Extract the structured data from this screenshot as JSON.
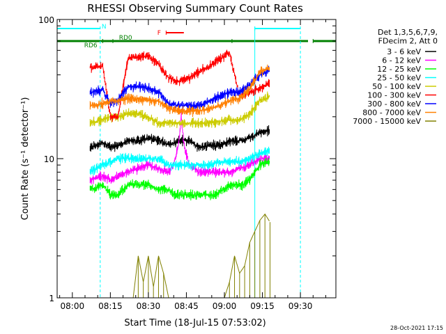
{
  "chart_data": {
    "type": "line",
    "title": "RHESSI Observing Summary Count Rates",
    "xlabel": "Start Time (18-Jul-15 07:53:02)",
    "ylabel": "Count Rate (s⁻¹ detector⁻¹)",
    "yscale": "log",
    "ylim": [
      1,
      100
    ],
    "xlim_minutes": [
      -6,
      104
    ],
    "x_ticks": [
      {
        "label": "08:00",
        "minute": 0
      },
      {
        "label": "08:15",
        "minute": 15
      },
      {
        "label": "08:30",
        "minute": 30
      },
      {
        "label": "08:45",
        "minute": 45
      },
      {
        "label": "09:00",
        "minute": 60
      },
      {
        "label": "09:15",
        "minute": 75
      },
      {
        "label": "09:30",
        "minute": 90
      }
    ],
    "y_ticks": [
      {
        "label": "1",
        "value": 1
      },
      {
        "label": "10",
        "value": 10
      },
      {
        "label": "100",
        "value": 100
      }
    ],
    "legend_header": [
      "Det 1,3,5,6,7,9,",
      "FDecim 2, Att 0"
    ],
    "legend_position": "right",
    "footer_date": "28-Oct-2021 17:15",
    "series": [
      {
        "name": "3 - 6 keV",
        "color": "#000000",
        "points": [
          [
            7,
            12
          ],
          [
            12,
            13
          ],
          [
            15,
            12
          ],
          [
            18,
            12.5
          ],
          [
            22,
            13.5
          ],
          [
            26,
            13.5
          ],
          [
            30,
            14
          ],
          [
            35,
            13.5
          ],
          [
            38,
            12.5
          ],
          [
            42,
            13.5
          ],
          [
            46,
            13.5
          ],
          [
            50,
            12
          ],
          [
            54,
            12.5
          ],
          [
            58,
            12.5
          ],
          [
            60,
            13
          ],
          [
            63,
            13.5
          ],
          [
            67,
            13.5
          ],
          [
            70,
            14
          ],
          [
            74,
            15.5
          ],
          [
            78,
            16
          ]
        ]
      },
      {
        "name": "6 - 12 keV",
        "color": "#ff00ff",
        "points": [
          [
            7,
            7
          ],
          [
            12,
            7.5
          ],
          [
            15,
            7
          ],
          [
            18,
            7.5
          ],
          [
            22,
            8
          ],
          [
            26,
            8.5
          ],
          [
            30,
            9
          ],
          [
            34,
            8.5
          ],
          [
            38,
            8
          ],
          [
            40,
            9
          ],
          [
            42,
            13
          ],
          [
            43,
            20
          ],
          [
            44,
            13
          ],
          [
            46,
            9
          ],
          [
            50,
            8
          ],
          [
            54,
            8
          ],
          [
            58,
            8
          ],
          [
            62,
            8
          ],
          [
            66,
            8.5
          ],
          [
            70,
            9
          ],
          [
            74,
            10
          ],
          [
            78,
            10
          ]
        ]
      },
      {
        "name": "12 - 25 keV",
        "color": "#00ff00",
        "points": [
          [
            7,
            6
          ],
          [
            12,
            6.5
          ],
          [
            15,
            5.5
          ],
          [
            18,
            5.5
          ],
          [
            22,
            6.5
          ],
          [
            26,
            6.5
          ],
          [
            30,
            6.5
          ],
          [
            34,
            6
          ],
          [
            38,
            6
          ],
          [
            40,
            5.5
          ],
          [
            44,
            5.5
          ],
          [
            48,
            5.5
          ],
          [
            52,
            5.5
          ],
          [
            56,
            5.5
          ],
          [
            60,
            6
          ],
          [
            63,
            6.5
          ],
          [
            67,
            6.5
          ],
          [
            70,
            7
          ],
          [
            74,
            9
          ],
          [
            78,
            9.5
          ]
        ]
      },
      {
        "name": "25 - 50 keV",
        "color": "#00ffff",
        "points": [
          [
            7,
            8
          ],
          [
            12,
            9
          ],
          [
            15,
            9.5
          ],
          [
            18,
            10
          ],
          [
            22,
            10
          ],
          [
            26,
            10
          ],
          [
            30,
            10
          ],
          [
            34,
            10
          ],
          [
            38,
            9
          ],
          [
            42,
            9
          ],
          [
            46,
            9
          ],
          [
            50,
            9
          ],
          [
            54,
            9
          ],
          [
            58,
            9.5
          ],
          [
            62,
            9.5
          ],
          [
            66,
            9.5
          ],
          [
            70,
            10
          ],
          [
            74,
            11
          ],
          [
            78,
            11.5
          ]
        ]
      },
      {
        "name": "50 - 100 keV",
        "color": "#cccc00",
        "points": [
          [
            7,
            18
          ],
          [
            12,
            19
          ],
          [
            15,
            20
          ],
          [
            18,
            20
          ],
          [
            22,
            21
          ],
          [
            26,
            21
          ],
          [
            30,
            20
          ],
          [
            34,
            18
          ],
          [
            38,
            18
          ],
          [
            42,
            18
          ],
          [
            46,
            18
          ],
          [
            50,
            18
          ],
          [
            54,
            18
          ],
          [
            58,
            18.5
          ],
          [
            62,
            19
          ],
          [
            66,
            19
          ],
          [
            70,
            21
          ],
          [
            74,
            26
          ],
          [
            78,
            28
          ]
        ]
      },
      {
        "name": "100 - 300 keV",
        "color": "#ff0000",
        "points": [
          [
            7,
            45
          ],
          [
            12,
            46
          ],
          [
            15,
            20
          ],
          [
            18,
            20
          ],
          [
            22,
            53
          ],
          [
            26,
            54
          ],
          [
            30,
            55
          ],
          [
            34,
            48
          ],
          [
            38,
            38
          ],
          [
            42,
            36
          ],
          [
            46,
            38
          ],
          [
            50,
            42
          ],
          [
            54,
            46
          ],
          [
            58,
            52
          ],
          [
            62,
            58
          ],
          [
            66,
            28
          ],
          [
            70,
            30
          ],
          [
            74,
            32
          ],
          [
            78,
            35
          ]
        ]
      },
      {
        "name": "300 - 800 keV",
        "color": "#0000ff",
        "points": [
          [
            7,
            30
          ],
          [
            12,
            31
          ],
          [
            15,
            25
          ],
          [
            18,
            26
          ],
          [
            22,
            33
          ],
          [
            26,
            33
          ],
          [
            30,
            32
          ],
          [
            34,
            30
          ],
          [
            38,
            25
          ],
          [
            42,
            24
          ],
          [
            46,
            24
          ],
          [
            50,
            24
          ],
          [
            54,
            26
          ],
          [
            58,
            28
          ],
          [
            62,
            30
          ],
          [
            66,
            30
          ],
          [
            70,
            34
          ],
          [
            74,
            40
          ],
          [
            78,
            43
          ]
        ]
      },
      {
        "name": "800 - 7000 keV",
        "color": "#ff8000",
        "points": [
          [
            7,
            24
          ],
          [
            12,
            25
          ],
          [
            15,
            26
          ],
          [
            18,
            26
          ],
          [
            22,
            27
          ],
          [
            26,
            27
          ],
          [
            30,
            26
          ],
          [
            34,
            26
          ],
          [
            38,
            23
          ],
          [
            42,
            22
          ],
          [
            46,
            22
          ],
          [
            50,
            22
          ],
          [
            54,
            23
          ],
          [
            58,
            24
          ],
          [
            62,
            26
          ],
          [
            66,
            27
          ],
          [
            70,
            32
          ],
          [
            74,
            42
          ],
          [
            78,
            45
          ]
        ]
      },
      {
        "name": "7000 - 15000 keV",
        "color": "#808000",
        "points": [
          [
            24,
            1
          ],
          [
            26,
            2
          ],
          [
            28,
            1.3
          ],
          [
            30,
            2
          ],
          [
            32,
            1.2
          ],
          [
            34,
            2
          ],
          [
            36,
            1.5
          ],
          [
            38,
            1
          ],
          [
            60,
            1
          ],
          [
            62,
            1.3
          ],
          [
            64,
            2
          ],
          [
            66,
            1.5
          ],
          [
            68,
            1.7
          ],
          [
            70,
            2.5
          ],
          [
            72,
            3
          ],
          [
            74,
            3.6
          ],
          [
            76,
            4
          ],
          [
            78,
            3.5
          ]
        ]
      }
    ],
    "annotations": [
      {
        "label": "N",
        "color": "#00ffff",
        "row": "top",
        "segments": [
          [
            -6,
            11
          ],
          [
            72,
            90
          ]
        ]
      },
      {
        "label": "RD6",
        "color": "#008000",
        "row": "mid",
        "segments": [
          [
            -6,
            12
          ],
          [
            12,
            16
          ]
        ]
      },
      {
        "label": "RD0",
        "color": "#008000",
        "row": "mid",
        "segments": [
          [
            16,
            63
          ],
          [
            63,
            93
          ],
          [
            95,
            104
          ]
        ]
      },
      {
        "label": "F",
        "color": "#ff0000",
        "row": "flare",
        "segments": [
          [
            37,
            44
          ]
        ]
      }
    ],
    "vertical_markers": [
      {
        "minute": 11,
        "color": "#00ffff",
        "style": "dashed"
      },
      {
        "minute": 72,
        "color": "#00ffff",
        "style": "solid"
      },
      {
        "minute": 90,
        "color": "#00ffff",
        "style": "dashed"
      }
    ]
  }
}
